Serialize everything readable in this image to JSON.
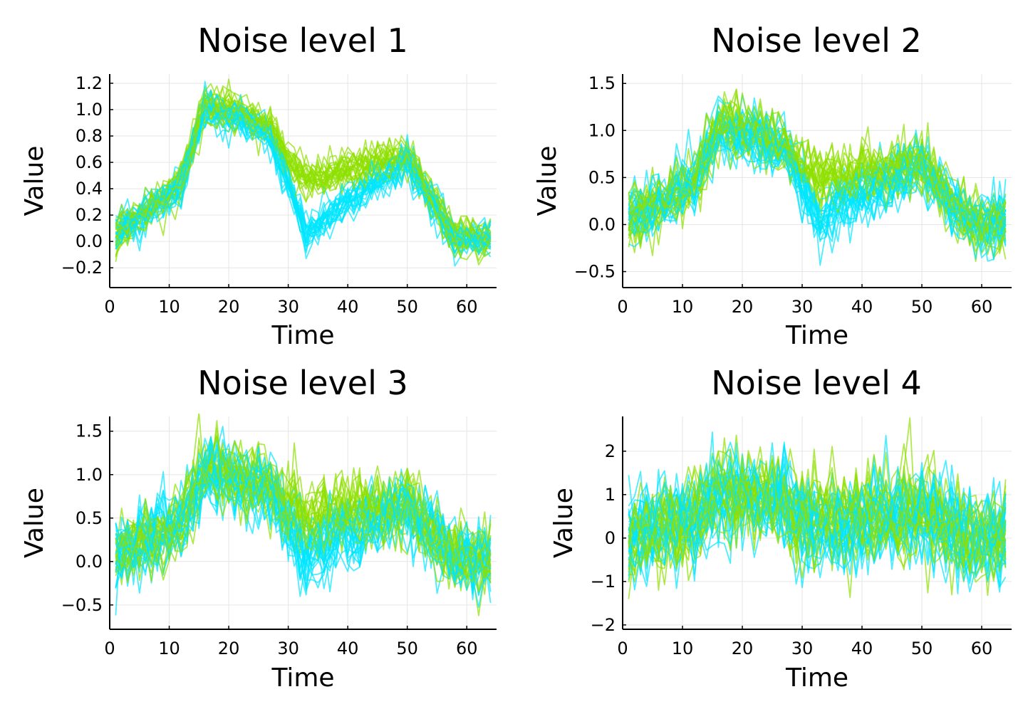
{
  "figure": {
    "colors": {
      "cyan": "#00e5ff",
      "green": "#8fe000"
    }
  },
  "chart_data": [
    {
      "type": "line",
      "title": "Noise level 1",
      "xlabel": "Time",
      "ylabel": "Value",
      "xlim": [
        0,
        65
      ],
      "ylim": [
        -0.35,
        1.27
      ],
      "xticks": [
        0,
        10,
        20,
        30,
        40,
        50,
        60
      ],
      "xtick_labels": [
        "0",
        "10",
        "20",
        "30",
        "40",
        "50",
        "60"
      ],
      "yticks": [
        1.2,
        1.0,
        0.8,
        0.6,
        0.4,
        0.2,
        0.0,
        -0.2
      ],
      "ytick_labels": [
        "1.2",
        "1.0",
        "0.8",
        "0.6",
        "0.4",
        "0.2",
        "0.0",
        "−0.2"
      ],
      "grid": true,
      "legend": "none",
      "noise_sd": 0.07,
      "series": [
        {
          "color": "#00e5ff",
          "count": 25,
          "x": [
            1,
            10,
            12,
            16,
            22,
            27,
            30,
            33,
            38,
            45,
            50,
            58,
            64
          ],
          "mean": [
            0.05,
            0.35,
            0.45,
            1.0,
            0.92,
            0.8,
            0.45,
            0.05,
            0.25,
            0.45,
            0.6,
            0.02,
            0.02
          ]
        },
        {
          "color": "#8fe000",
          "count": 25,
          "x": [
            1,
            10,
            12,
            16,
            22,
            27,
            30,
            33,
            38,
            45,
            50,
            58,
            64
          ],
          "mean": [
            0.05,
            0.35,
            0.45,
            1.05,
            0.98,
            0.85,
            0.6,
            0.48,
            0.52,
            0.6,
            0.65,
            0.02,
            0.02
          ]
        }
      ]
    },
    {
      "type": "line",
      "title": "Noise level 2",
      "xlabel": "Time",
      "ylabel": "Value",
      "xlim": [
        0,
        65
      ],
      "ylim": [
        -0.67,
        1.6
      ],
      "xticks": [
        0,
        10,
        20,
        30,
        40,
        50,
        60
      ],
      "xtick_labels": [
        "0",
        "10",
        "20",
        "30",
        "40",
        "50",
        "60"
      ],
      "yticks": [
        1.5,
        1.0,
        0.5,
        0.0,
        -0.5
      ],
      "ytick_labels": [
        "1.5",
        "1.0",
        "0.5",
        "0.0",
        "−0.5"
      ],
      "grid": true,
      "legend": "none",
      "noise_sd": 0.15,
      "series": [
        {
          "color": "#00e5ff",
          "count": 25,
          "x": [
            1,
            10,
            12,
            16,
            22,
            27,
            30,
            33,
            38,
            45,
            50,
            58,
            64
          ],
          "mean": [
            0.05,
            0.35,
            0.45,
            1.0,
            0.92,
            0.8,
            0.4,
            0.05,
            0.25,
            0.45,
            0.6,
            0.02,
            0.02
          ]
        },
        {
          "color": "#8fe000",
          "count": 25,
          "x": [
            1,
            10,
            12,
            16,
            22,
            27,
            30,
            33,
            38,
            45,
            50,
            58,
            64
          ],
          "mean": [
            0.05,
            0.35,
            0.45,
            1.05,
            0.98,
            0.85,
            0.6,
            0.48,
            0.52,
            0.6,
            0.65,
            0.02,
            0.02
          ]
        }
      ]
    },
    {
      "type": "line",
      "title": "Noise level 3",
      "xlabel": "Time",
      "ylabel": "Value",
      "xlim": [
        0,
        65
      ],
      "ylim": [
        -0.78,
        1.67
      ],
      "xticks": [
        0,
        10,
        20,
        30,
        40,
        50,
        60
      ],
      "xtick_labels": [
        "0",
        "10",
        "20",
        "30",
        "40",
        "50",
        "60"
      ],
      "yticks": [
        1.5,
        1.0,
        0.5,
        0.0,
        -0.5
      ],
      "ytick_labels": [
        "1.5",
        "1.0",
        "0.5",
        "0.0",
        "−0.5"
      ],
      "grid": true,
      "legend": "none",
      "noise_sd": 0.2,
      "series": [
        {
          "color": "#00e5ff",
          "count": 25,
          "x": [
            1,
            10,
            12,
            16,
            22,
            27,
            30,
            33,
            38,
            45,
            50,
            58,
            64
          ],
          "mean": [
            0.05,
            0.35,
            0.45,
            1.0,
            0.92,
            0.8,
            0.4,
            0.0,
            0.25,
            0.45,
            0.6,
            0.02,
            0.02
          ]
        },
        {
          "color": "#8fe000",
          "count": 25,
          "x": [
            1,
            10,
            12,
            16,
            22,
            27,
            30,
            33,
            38,
            45,
            50,
            58,
            64
          ],
          "mean": [
            0.05,
            0.35,
            0.45,
            1.05,
            0.98,
            0.85,
            0.6,
            0.48,
            0.52,
            0.6,
            0.65,
            0.02,
            0.02
          ]
        }
      ]
    },
    {
      "type": "line",
      "title": "Noise level 4",
      "xlabel": "Time",
      "ylabel": "Value",
      "xlim": [
        0,
        65
      ],
      "ylim": [
        -2.1,
        2.8
      ],
      "xticks": [
        0,
        10,
        20,
        30,
        40,
        50,
        60
      ],
      "xtick_labels": [
        "0",
        "10",
        "20",
        "30",
        "40",
        "50",
        "60"
      ],
      "yticks": [
        2,
        1,
        0,
        -1,
        -2
      ],
      "ytick_labels": [
        "2",
        "1",
        "0",
        "−1",
        "−2"
      ],
      "grid": true,
      "legend": "none",
      "noise_sd": 0.5,
      "series": [
        {
          "color": "#00e5ff",
          "count": 25,
          "x": [
            1,
            10,
            12,
            16,
            22,
            27,
            30,
            33,
            38,
            45,
            50,
            58,
            64
          ],
          "mean": [
            0.05,
            0.35,
            0.45,
            1.0,
            0.92,
            0.8,
            0.4,
            0.05,
            0.25,
            0.45,
            0.6,
            0.02,
            0.02
          ]
        },
        {
          "color": "#8fe000",
          "count": 25,
          "x": [
            1,
            10,
            12,
            16,
            22,
            27,
            30,
            33,
            38,
            45,
            50,
            58,
            64
          ],
          "mean": [
            0.05,
            0.35,
            0.45,
            1.05,
            0.98,
            0.85,
            0.6,
            0.48,
            0.52,
            0.6,
            0.65,
            0.02,
            0.02
          ]
        }
      ]
    }
  ]
}
